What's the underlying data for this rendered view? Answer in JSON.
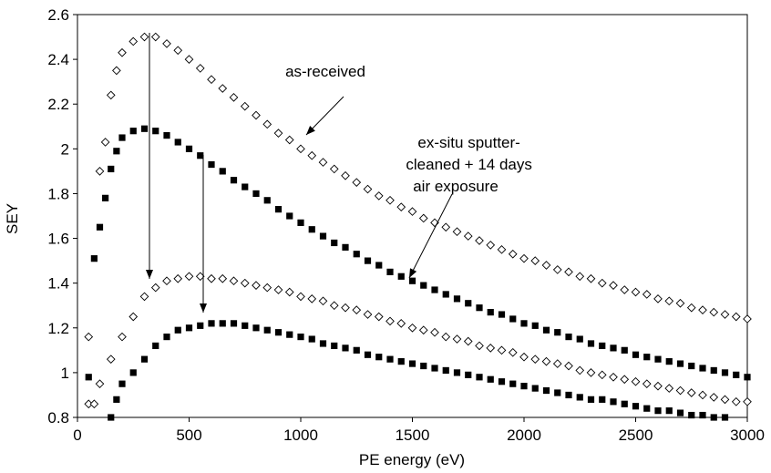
{
  "chart_data": {
    "type": "scatter",
    "title": "",
    "xlabel": "PE energy (eV)",
    "ylabel": "SEY",
    "xlim": [
      0,
      3000
    ],
    "ylim": [
      0.8,
      2.6
    ],
    "xticks": [
      0,
      500,
      1000,
      1500,
      2000,
      2500,
      3000
    ],
    "yticks": [
      0.8,
      1,
      1.2,
      1.4,
      1.6,
      1.8,
      2,
      2.2,
      2.4,
      2.6
    ],
    "xtick_labels": [
      "0",
      "500",
      "1000",
      "1500",
      "2000",
      "2500",
      "3000"
    ],
    "ytick_labels": [
      "0.8",
      "1",
      "1.2",
      "1.4",
      "1.6",
      "1.8",
      "2",
      "2.2",
      "2.4",
      "2.6"
    ],
    "grid": false,
    "legend": "none",
    "series": [
      {
        "marker": "open-diamond",
        "color": "#000000",
        "points": [
          [
            50,
            1.16
          ],
          [
            100,
            1.9
          ],
          [
            125,
            2.03
          ],
          [
            150,
            2.24
          ],
          [
            175,
            2.35
          ],
          [
            200,
            2.43
          ],
          [
            250,
            2.48
          ],
          [
            300,
            2.5
          ],
          [
            350,
            2.5
          ],
          [
            400,
            2.47
          ],
          [
            450,
            2.44
          ],
          [
            500,
            2.4
          ],
          [
            550,
            2.36
          ],
          [
            600,
            2.31
          ],
          [
            650,
            2.27
          ],
          [
            700,
            2.23
          ],
          [
            750,
            2.19
          ],
          [
            800,
            2.15
          ],
          [
            850,
            2.11
          ],
          [
            900,
            2.07
          ],
          [
            950,
            2.04
          ],
          [
            1000,
            2.0
          ],
          [
            1050,
            1.97
          ],
          [
            1100,
            1.94
          ],
          [
            1150,
            1.91
          ],
          [
            1200,
            1.88
          ],
          [
            1250,
            1.85
          ],
          [
            1300,
            1.82
          ],
          [
            1350,
            1.79
          ],
          [
            1400,
            1.77
          ],
          [
            1450,
            1.74
          ],
          [
            1500,
            1.72
          ],
          [
            1550,
            1.69
          ],
          [
            1600,
            1.67
          ],
          [
            1650,
            1.65
          ],
          [
            1700,
            1.63
          ],
          [
            1750,
            1.61
          ],
          [
            1800,
            1.59
          ],
          [
            1850,
            1.57
          ],
          [
            1900,
            1.55
          ],
          [
            1950,
            1.53
          ],
          [
            2000,
            1.51
          ],
          [
            2050,
            1.5
          ],
          [
            2100,
            1.48
          ],
          [
            2150,
            1.46
          ],
          [
            2200,
            1.45
          ],
          [
            2250,
            1.43
          ],
          [
            2300,
            1.42
          ],
          [
            2350,
            1.4
          ],
          [
            2400,
            1.39
          ],
          [
            2450,
            1.37
          ],
          [
            2500,
            1.36
          ],
          [
            2550,
            1.35
          ],
          [
            2600,
            1.33
          ],
          [
            2650,
            1.32
          ],
          [
            2700,
            1.31
          ],
          [
            2750,
            1.29
          ],
          [
            2800,
            1.28
          ],
          [
            2850,
            1.27
          ],
          [
            2900,
            1.26
          ],
          [
            2950,
            1.25
          ],
          [
            3000,
            1.24
          ]
        ]
      },
      {
        "marker": "filled-square",
        "color": "#000000",
        "points": [
          [
            50,
            0.98
          ],
          [
            75,
            1.51
          ],
          [
            100,
            1.65
          ],
          [
            125,
            1.78
          ],
          [
            150,
            1.91
          ],
          [
            175,
            1.99
          ],
          [
            200,
            2.05
          ],
          [
            250,
            2.08
          ],
          [
            300,
            2.09
          ],
          [
            350,
            2.08
          ],
          [
            400,
            2.06
          ],
          [
            450,
            2.03
          ],
          [
            500,
            2.0
          ],
          [
            550,
            1.97
          ],
          [
            600,
            1.93
          ],
          [
            650,
            1.9
          ],
          [
            700,
            1.86
          ],
          [
            750,
            1.83
          ],
          [
            800,
            1.8
          ],
          [
            850,
            1.77
          ],
          [
            900,
            1.73
          ],
          [
            950,
            1.7
          ],
          [
            1000,
            1.67
          ],
          [
            1050,
            1.64
          ],
          [
            1100,
            1.61
          ],
          [
            1150,
            1.58
          ],
          [
            1200,
            1.56
          ],
          [
            1250,
            1.53
          ],
          [
            1300,
            1.5
          ],
          [
            1350,
            1.48
          ],
          [
            1400,
            1.45
          ],
          [
            1450,
            1.43
          ],
          [
            1500,
            1.41
          ],
          [
            1550,
            1.39
          ],
          [
            1600,
            1.37
          ],
          [
            1650,
            1.35
          ],
          [
            1700,
            1.33
          ],
          [
            1750,
            1.31
          ],
          [
            1800,
            1.29
          ],
          [
            1850,
            1.27
          ],
          [
            1900,
            1.26
          ],
          [
            1950,
            1.24
          ],
          [
            2000,
            1.22
          ],
          [
            2050,
            1.21
          ],
          [
            2100,
            1.19
          ],
          [
            2150,
            1.18
          ],
          [
            2200,
            1.16
          ],
          [
            2250,
            1.15
          ],
          [
            2300,
            1.13
          ],
          [
            2350,
            1.12
          ],
          [
            2400,
            1.11
          ],
          [
            2450,
            1.1
          ],
          [
            2500,
            1.08
          ],
          [
            2550,
            1.07
          ],
          [
            2600,
            1.06
          ],
          [
            2650,
            1.05
          ],
          [
            2700,
            1.04
          ],
          [
            2750,
            1.03
          ],
          [
            2800,
            1.02
          ],
          [
            2850,
            1.01
          ],
          [
            2900,
            1.0
          ],
          [
            2950,
            0.99
          ],
          [
            3000,
            0.98
          ]
        ]
      },
      {
        "marker": "open-diamond",
        "color": "#000000",
        "points": [
          [
            50,
            0.86
          ],
          [
            75,
            0.86
          ],
          [
            100,
            0.95
          ],
          [
            150,
            1.06
          ],
          [
            200,
            1.16
          ],
          [
            250,
            1.25
          ],
          [
            300,
            1.34
          ],
          [
            350,
            1.38
          ],
          [
            400,
            1.41
          ],
          [
            450,
            1.42
          ],
          [
            500,
            1.43
          ],
          [
            550,
            1.43
          ],
          [
            600,
            1.42
          ],
          [
            650,
            1.42
          ],
          [
            700,
            1.41
          ],
          [
            750,
            1.4
          ],
          [
            800,
            1.39
          ],
          [
            850,
            1.38
          ],
          [
            900,
            1.37
          ],
          [
            950,
            1.36
          ],
          [
            1000,
            1.34
          ],
          [
            1050,
            1.33
          ],
          [
            1100,
            1.32
          ],
          [
            1150,
            1.3
          ],
          [
            1200,
            1.29
          ],
          [
            1250,
            1.28
          ],
          [
            1300,
            1.26
          ],
          [
            1350,
            1.25
          ],
          [
            1400,
            1.23
          ],
          [
            1450,
            1.22
          ],
          [
            1500,
            1.2
          ],
          [
            1550,
            1.19
          ],
          [
            1600,
            1.18
          ],
          [
            1650,
            1.16
          ],
          [
            1700,
            1.15
          ],
          [
            1750,
            1.14
          ],
          [
            1800,
            1.12
          ],
          [
            1850,
            1.11
          ],
          [
            1900,
            1.1
          ],
          [
            1950,
            1.09
          ],
          [
            2000,
            1.07
          ],
          [
            2050,
            1.06
          ],
          [
            2100,
            1.05
          ],
          [
            2150,
            1.04
          ],
          [
            2200,
            1.03
          ],
          [
            2250,
            1.01
          ],
          [
            2300,
            1.0
          ],
          [
            2350,
            0.99
          ],
          [
            2400,
            0.98
          ],
          [
            2450,
            0.97
          ],
          [
            2500,
            0.96
          ],
          [
            2550,
            0.95
          ],
          [
            2600,
            0.94
          ],
          [
            2650,
            0.93
          ],
          [
            2700,
            0.92
          ],
          [
            2750,
            0.91
          ],
          [
            2800,
            0.9
          ],
          [
            2850,
            0.89
          ],
          [
            2900,
            0.88
          ],
          [
            2950,
            0.87
          ],
          [
            3000,
            0.87
          ]
        ]
      },
      {
        "marker": "filled-square",
        "color": "#000000",
        "points": [
          [
            150,
            0.8
          ],
          [
            175,
            0.88
          ],
          [
            200,
            0.95
          ],
          [
            250,
            1.0
          ],
          [
            300,
            1.06
          ],
          [
            350,
            1.12
          ],
          [
            400,
            1.16
          ],
          [
            450,
            1.19
          ],
          [
            500,
            1.2
          ],
          [
            550,
            1.21
          ],
          [
            600,
            1.22
          ],
          [
            650,
            1.22
          ],
          [
            700,
            1.22
          ],
          [
            750,
            1.21
          ],
          [
            800,
            1.2
          ],
          [
            850,
            1.19
          ],
          [
            900,
            1.18
          ],
          [
            950,
            1.17
          ],
          [
            1000,
            1.16
          ],
          [
            1050,
            1.15
          ],
          [
            1100,
            1.13
          ],
          [
            1150,
            1.12
          ],
          [
            1200,
            1.11
          ],
          [
            1250,
            1.1
          ],
          [
            1300,
            1.08
          ],
          [
            1350,
            1.07
          ],
          [
            1400,
            1.06
          ],
          [
            1450,
            1.05
          ],
          [
            1500,
            1.04
          ],
          [
            1550,
            1.03
          ],
          [
            1600,
            1.02
          ],
          [
            1650,
            1.01
          ],
          [
            1700,
            1.0
          ],
          [
            1750,
            0.99
          ],
          [
            1800,
            0.98
          ],
          [
            1850,
            0.97
          ],
          [
            1900,
            0.96
          ],
          [
            1950,
            0.95
          ],
          [
            2000,
            0.94
          ],
          [
            2050,
            0.93
          ],
          [
            2100,
            0.92
          ],
          [
            2150,
            0.91
          ],
          [
            2200,
            0.9
          ],
          [
            2250,
            0.89
          ],
          [
            2300,
            0.88
          ],
          [
            2350,
            0.88
          ],
          [
            2400,
            0.87
          ],
          [
            2450,
            0.86
          ],
          [
            2500,
            0.85
          ],
          [
            2550,
            0.84
          ],
          [
            2600,
            0.83
          ],
          [
            2650,
            0.83
          ],
          [
            2700,
            0.82
          ],
          [
            2750,
            0.81
          ],
          [
            2800,
            0.81
          ],
          [
            2850,
            0.8
          ],
          [
            2900,
            0.8
          ]
        ]
      }
    ],
    "annotations": [
      {
        "lines": [
          "as-received"
        ]
      },
      {
        "lines": [
          "ex-situ sputter-",
          "cleaned + 14 days",
          "air exposure"
        ]
      }
    ]
  }
}
